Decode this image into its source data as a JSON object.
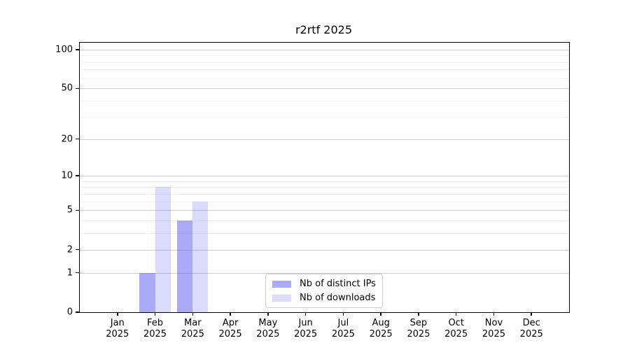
{
  "title": "r2rtf 2025",
  "chart_data": {
    "type": "bar",
    "title": "r2rtf 2025",
    "categories": [
      "Jan",
      "Feb",
      "Mar",
      "Apr",
      "May",
      "Jun",
      "Jul",
      "Aug",
      "Sep",
      "Oct",
      "Nov",
      "Dec"
    ],
    "year_label": "2025",
    "series": [
      {
        "key": "distinct-ips",
        "name": "Nb of distinct IPs",
        "color": "rgba(85,85,238,0.5)",
        "values": [
          0,
          1,
          4,
          0,
          0,
          0,
          0,
          0,
          0,
          0,
          0,
          0
        ]
      },
      {
        "key": "downloads",
        "name": "Nb of downloads",
        "color": "rgba(85,85,238,0.21)",
        "values": [
          0,
          8,
          6,
          0,
          0,
          0,
          0,
          0,
          0,
          0,
          0,
          0
        ]
      }
    ],
    "xlabel": "",
    "ylabel": "",
    "yscale": "log1p",
    "yticks": [
      0,
      1,
      2,
      5,
      10,
      20,
      50,
      100
    ],
    "yticks_minor": [
      3,
      4,
      6,
      7,
      8,
      9,
      30,
      40,
      60,
      70,
      80,
      90
    ],
    "ylim": [
      0,
      113
    ],
    "grid": true,
    "legend_position": "lower center"
  }
}
